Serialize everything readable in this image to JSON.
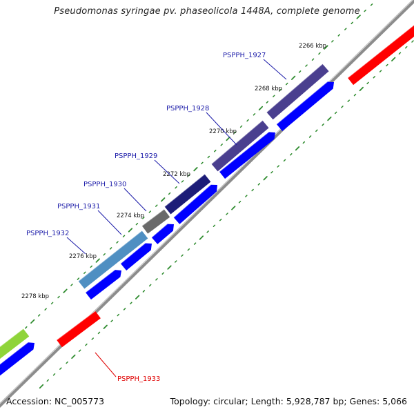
{
  "title": "Pseudomonas syringae pv. phaseolicola 1448A, complete genome",
  "footer": {
    "accession": "Accession: NC_005773",
    "summary": "Topology: circular; Length: 5,928,787 bp; Genes: 5,066"
  },
  "ticks": [
    {
      "label": "2266 kbp"
    },
    {
      "label": "2268 kbp"
    },
    {
      "label": "2270 kbp"
    },
    {
      "label": "2272 kbp"
    },
    {
      "label": "2274 kbp"
    },
    {
      "label": "2276 kbp"
    },
    {
      "label": "2278 kbp"
    }
  ],
  "genes": [
    {
      "name": "PSPPH_1927",
      "color": "#1a1aa8"
    },
    {
      "name": "PSPPH_1928",
      "color": "#1a1aa8"
    },
    {
      "name": "PSPPH_1929",
      "color": "#1a1aa8"
    },
    {
      "name": "PSPPH_1930",
      "color": "#1a1aa8"
    },
    {
      "name": "PSPPH_1931",
      "color": "#1a1aa8"
    },
    {
      "name": "PSPPH_1932",
      "color": "#1a1aa8"
    },
    {
      "name": "PSPPH_1933",
      "color": "#e00000"
    }
  ],
  "colors": {
    "backbone": "#8c8c8c",
    "tick_marks": "#2e8b2e",
    "cds_forward": "#0000ff",
    "cds_reverse": "#ff0000",
    "cog_purple": "#4a3f8f",
    "cog_navy": "#1c1c78",
    "cog_gray": "#6a6a6a",
    "cog_steelblue": "#4f8fc2",
    "cog_green": "#8fd43a"
  }
}
